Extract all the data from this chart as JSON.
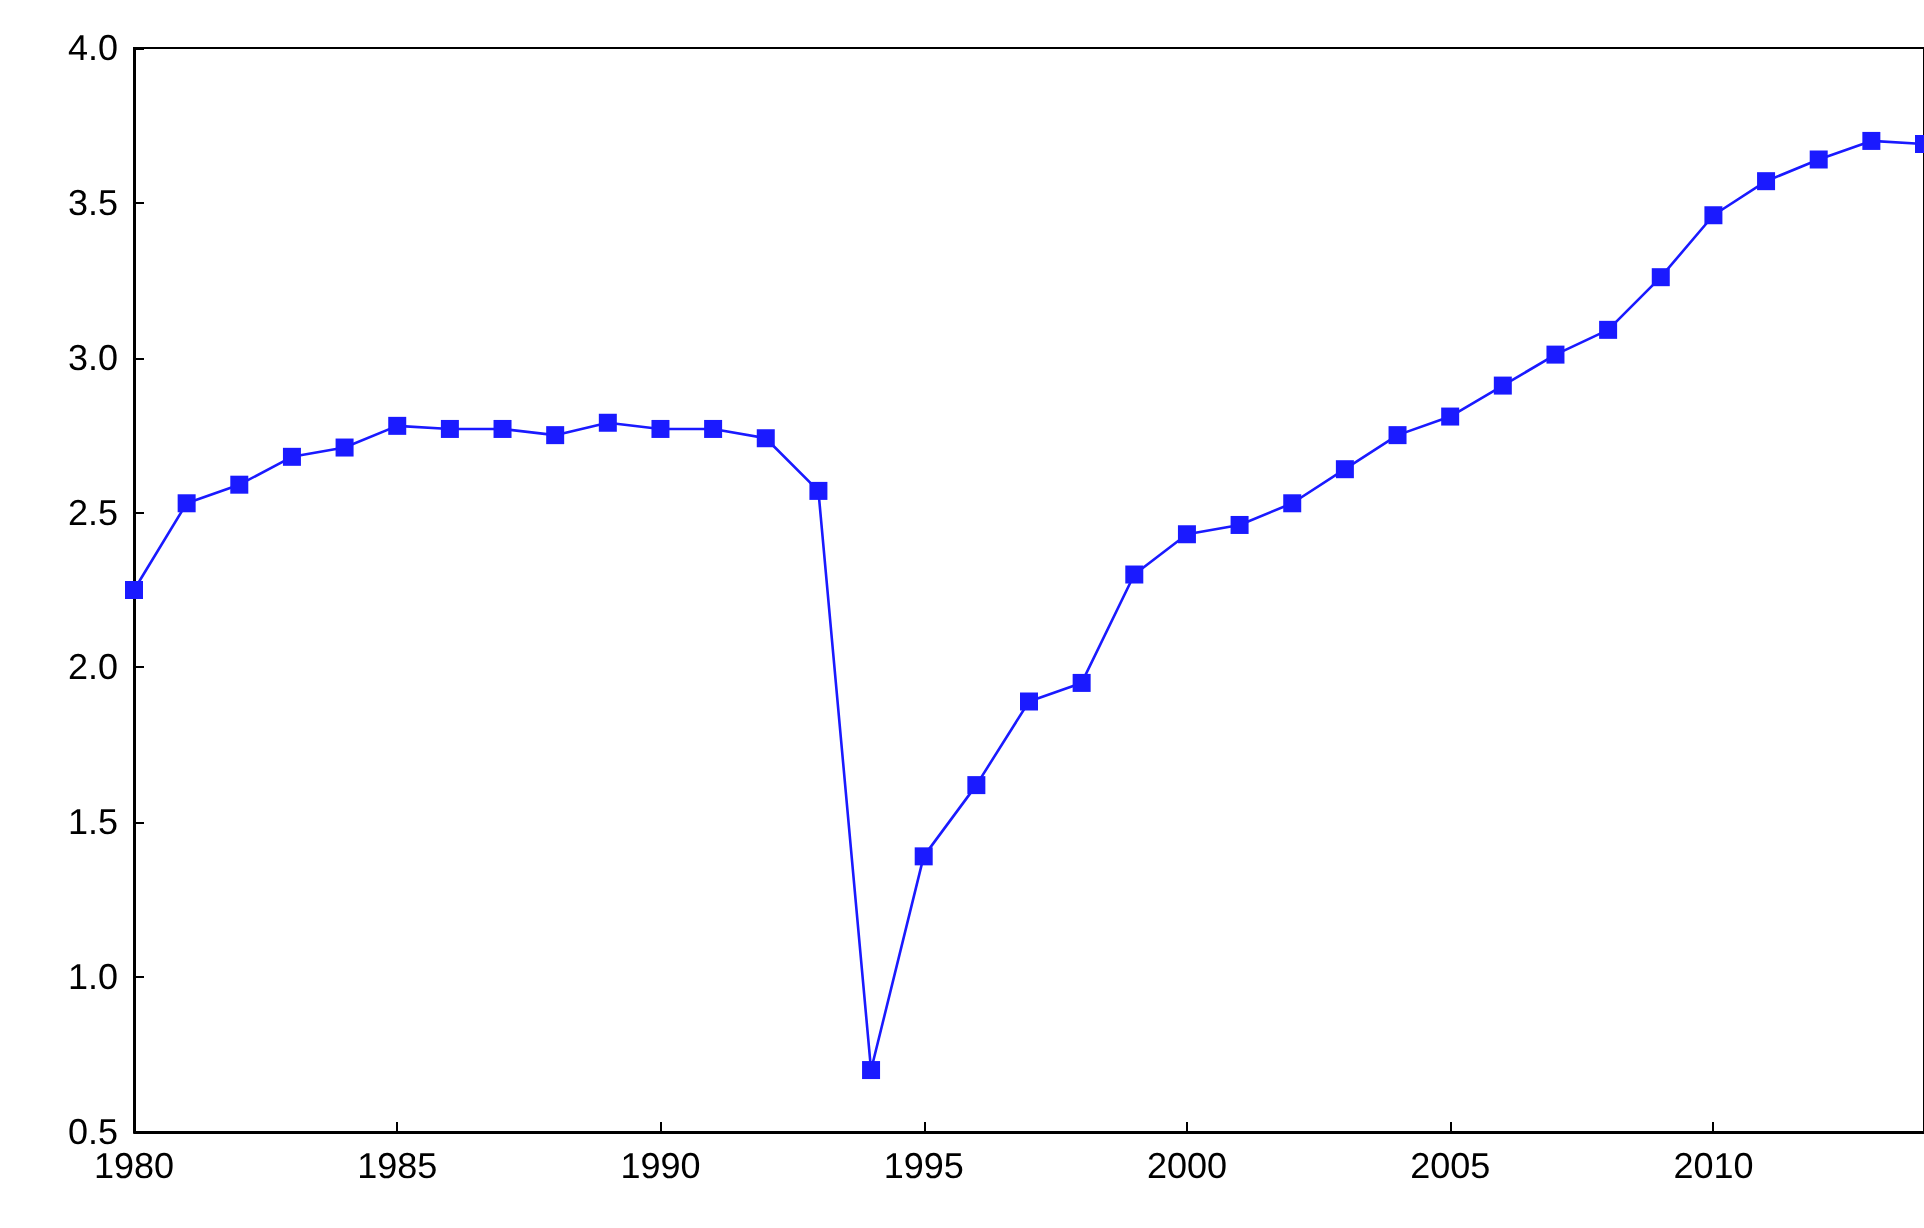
{
  "chart_data": {
    "type": "line",
    "x": [
      1980,
      1981,
      1982,
      1983,
      1984,
      1985,
      1986,
      1987,
      1988,
      1989,
      1990,
      1991,
      1992,
      1993,
      1994,
      1995,
      1996,
      1997,
      1998,
      1999,
      2000,
      2001,
      2002,
      2003,
      2004,
      2005,
      2006,
      2007,
      2008,
      2009,
      2010,
      2011,
      2012,
      2013,
      2014
    ],
    "series": [
      {
        "color": "#1a1aff",
        "values": [
          2.25,
          2.53,
          2.59,
          2.68,
          2.71,
          2.78,
          2.77,
          2.77,
          2.75,
          2.79,
          2.77,
          2.77,
          2.74,
          2.57,
          0.7,
          1.39,
          1.62,
          1.89,
          1.95,
          2.3,
          2.43,
          2.46,
          2.53,
          2.64,
          2.75,
          2.81,
          2.91,
          3.01,
          3.09,
          3.26,
          3.46,
          3.57,
          3.64,
          3.7,
          3.69
        ]
      }
    ],
    "xlim": [
      1980,
      2014
    ],
    "xticks": [
      1980,
      1985,
      1990,
      1995,
      2000,
      2005,
      2010
    ],
    "ylim": [
      0.5,
      4.0
    ],
    "yticks": [
      {
        "value": 0.5,
        "label": "0.5"
      },
      {
        "value": 1,
        "label": "1.0"
      },
      {
        "value": 1.5,
        "label": "1.5"
      },
      {
        "value": 2,
        "label": "2.0"
      },
      {
        "value": 2.5,
        "label": "2.5"
      },
      {
        "value": 3,
        "label": "3.0"
      },
      {
        "value": 3.5,
        "label": "3.5"
      },
      {
        "value": 4,
        "label": "4.0"
      }
    ],
    "grid": false,
    "marker": "square",
    "line_style": "solid"
  }
}
